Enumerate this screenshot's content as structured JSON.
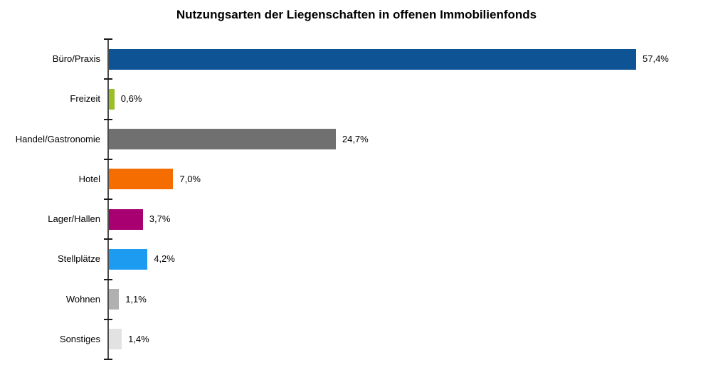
{
  "chart_data": {
    "type": "bar",
    "orientation": "horizontal",
    "title": "Nutzungsarten der Liegenschaften in offenen Immobilienfonds",
    "categories": [
      "Büro/Praxis",
      "Freizeit",
      "Handel/Gastronomie",
      "Hotel",
      "Lager/Hallen",
      "Stellplätze",
      "Wohnen",
      "Sonstiges"
    ],
    "values": [
      57.4,
      0.6,
      24.7,
      7.0,
      3.7,
      4.2,
      1.1,
      1.4
    ],
    "value_labels": [
      "57,4%",
      "0,6%",
      "24,7%",
      "7,0%",
      "3,7%",
      "4,2%",
      "1,1%",
      "1,4%"
    ],
    "colors": [
      "#0E5394",
      "#9ABE23",
      "#707070",
      "#F56C00",
      "#A80070",
      "#1C9BF0",
      "#B0B0B0",
      "#E2E2E2"
    ],
    "xlabel": "",
    "ylabel": "",
    "xlim": [
      0,
      60
    ],
    "grid": false,
    "legend": false,
    "axis_color": "#4d4d4d",
    "unit": "%"
  }
}
